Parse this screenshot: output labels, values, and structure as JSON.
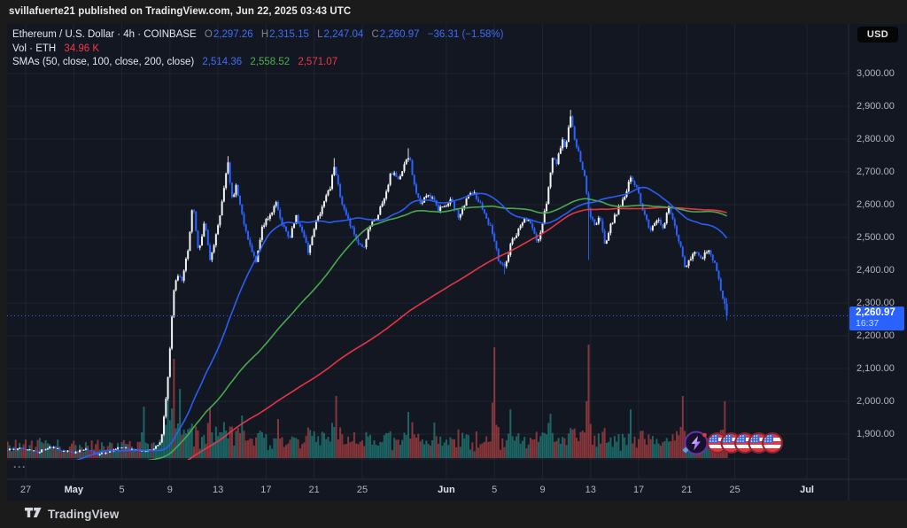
{
  "page": {
    "publish_line": "svillafuerte21 published on TradingView.com, Jun 22, 2025 03:43 UTC",
    "brand": "TradingView"
  },
  "chart": {
    "currency_button": "USD",
    "pane_more": "···",
    "legend": {
      "title": "Ethereum / U.S. Dollar · 4h · COINBASE",
      "o_label": "O",
      "o_value": "2,297.26",
      "h_label": "H",
      "h_value": "2,315.15",
      "l_label": "L",
      "l_value": "2,247.04",
      "c_label": "C",
      "c_value": "2,260.97",
      "change": "−36.31 (−1.58%)",
      "vol_label": "Vol · ETH",
      "vol_value": "34.96 K",
      "smas_label": "SMAs (50, close, 100, close, 200, close)",
      "sma50": "2,514.36",
      "sma100": "2,558.52",
      "sma200": "2,571.07"
    },
    "price_label": {
      "price": "2,260.97",
      "countdown": "16:37"
    }
  },
  "colors": {
    "up": "#f4f5f7",
    "down": "#2962ff",
    "sma50": "#2962ff",
    "sma100": "#4caf50",
    "sma200": "#f23645",
    "vol_up": "rgba(38,166,154,0.55)",
    "vol_down": "rgba(239,83,80,0.52)",
    "accent": "#2962ff",
    "bg_chart": "#131722",
    "bg_frame": "#1b1b1b",
    "grid": "rgba(255,255,255,0.055)",
    "axis_border": "#2a2e39",
    "axis_text": "#b2b5be"
  },
  "chart_data": {
    "type": "candlestick",
    "symbol_title": "Ethereum / U.S. Dollar",
    "interval": "4h",
    "exchange": "COINBASE",
    "ohlc_last": {
      "open": 2297.26,
      "high": 2315.15,
      "low": 2247.04,
      "close": 2260.97,
      "change": -36.31,
      "change_pct": -1.58
    },
    "volume_last": "34.96 K",
    "sma_values": {
      "sma50": 2514.36,
      "sma100": 2558.52,
      "sma200": 2571.07
    },
    "last_price": 2260.97,
    "grid": true,
    "y_axis": {
      "ticks": [
        {
          "price": 3000,
          "label": "3,000.00"
        },
        {
          "price": 2900,
          "label": "2,900.00"
        },
        {
          "price": 2800,
          "label": "2,800.00"
        },
        {
          "price": 2700,
          "label": "2,700.00"
        },
        {
          "price": 2600,
          "label": "2,600.00"
        },
        {
          "price": 2500,
          "label": "2,500.00"
        },
        {
          "price": 2400,
          "label": "2,400.00"
        },
        {
          "price": 2300,
          "label": "2,300.00"
        },
        {
          "price": 2200,
          "label": "2,200.00"
        },
        {
          "price": 2100,
          "label": "2,100.00"
        },
        {
          "price": 2000,
          "label": "2,000.00"
        },
        {
          "price": 1900,
          "label": "1,900.00"
        }
      ]
    },
    "x_axis": {
      "ticks": [
        {
          "label": "27",
          "day": 0
        },
        {
          "label": "May",
          "day": 4,
          "bold": true
        },
        {
          "label": "5",
          "day": 8
        },
        {
          "label": "9",
          "day": 12
        },
        {
          "label": "13",
          "day": 16
        },
        {
          "label": "17",
          "day": 20
        },
        {
          "label": "21",
          "day": 24
        },
        {
          "label": "25",
          "day": 28
        },
        {
          "label": "Jun",
          "day": 35,
          "bold": true
        },
        {
          "label": "5",
          "day": 39
        },
        {
          "label": "9",
          "day": 43
        },
        {
          "label": "13",
          "day": 47
        },
        {
          "label": "17",
          "day": 51
        },
        {
          "label": "21",
          "day": 55
        },
        {
          "label": "25",
          "day": 59
        },
        {
          "label": "Jul",
          "day": 65,
          "bold": true
        }
      ]
    },
    "price_path_day_price": [
      [
        -1.5,
        1852
      ],
      [
        0,
        1856
      ],
      [
        1,
        1845
      ],
      [
        2,
        1862
      ],
      [
        3,
        1850
      ],
      [
        4,
        1843
      ],
      [
        5,
        1856
      ],
      [
        6,
        1838
      ],
      [
        7,
        1848
      ],
      [
        8,
        1860
      ],
      [
        9,
        1852
      ],
      [
        10,
        1846
      ],
      [
        10.8,
        1858
      ],
      [
        11.3,
        1885
      ],
      [
        11.9,
        2100
      ],
      [
        12.3,
        2330
      ],
      [
        12.6,
        2390
      ],
      [
        13.0,
        2360
      ],
      [
        13.6,
        2480
      ],
      [
        13.9,
        2610
      ],
      [
        14.4,
        2455
      ],
      [
        14.9,
        2550
      ],
      [
        15.3,
        2430
      ],
      [
        15.8,
        2500
      ],
      [
        16.3,
        2600
      ],
      [
        16.8,
        2732
      ],
      [
        17.2,
        2605
      ],
      [
        17.5,
        2660
      ],
      [
        18.1,
        2550
      ],
      [
        18.6,
        2480
      ],
      [
        19.2,
        2428
      ],
      [
        19.7,
        2540
      ],
      [
        20.3,
        2562
      ],
      [
        20.8,
        2618
      ],
      [
        21.3,
        2540
      ],
      [
        22.0,
        2502
      ],
      [
        22.5,
        2560
      ],
      [
        23.0,
        2516
      ],
      [
        23.5,
        2456
      ],
      [
        24.1,
        2540
      ],
      [
        24.8,
        2608
      ],
      [
        25.3,
        2650
      ],
      [
        25.7,
        2722
      ],
      [
        26.3,
        2602
      ],
      [
        26.9,
        2542
      ],
      [
        27.5,
        2502
      ],
      [
        28.1,
        2456
      ],
      [
        28.6,
        2540
      ],
      [
        29.2,
        2562
      ],
      [
        29.8,
        2620
      ],
      [
        30.4,
        2698
      ],
      [
        31.0,
        2680
      ],
      [
        31.5,
        2718
      ],
      [
        31.9,
        2752
      ],
      [
        32.4,
        2642
      ],
      [
        32.9,
        2590
      ],
      [
        33.4,
        2638
      ],
      [
        33.9,
        2618
      ],
      [
        34.4,
        2582
      ],
      [
        34.9,
        2600
      ],
      [
        35.4,
        2618
      ],
      [
        36.0,
        2562
      ],
      [
        36.5,
        2600
      ],
      [
        37.1,
        2645
      ],
      [
        37.7,
        2610
      ],
      [
        38.3,
        2560
      ],
      [
        38.9,
        2508
      ],
      [
        39.4,
        2422
      ],
      [
        39.9,
        2406
      ],
      [
        40.5,
        2498
      ],
      [
        41.0,
        2520
      ],
      [
        41.6,
        2558
      ],
      [
        42.2,
        2530
      ],
      [
        42.6,
        2482
      ],
      [
        43.0,
        2540
      ],
      [
        43.4,
        2618
      ],
      [
        43.8,
        2748
      ],
      [
        44.2,
        2722
      ],
      [
        44.6,
        2798
      ],
      [
        44.9,
        2772
      ],
      [
        45.3,
        2868
      ],
      [
        45.7,
        2798
      ],
      [
        46.1,
        2740
      ],
      [
        46.5,
        2688
      ],
      [
        46.9,
        2560
      ],
      [
        47.3,
        2542
      ],
      [
        47.8,
        2562
      ],
      [
        48.2,
        2482
      ],
      [
        48.7,
        2540
      ],
      [
        49.2,
        2578
      ],
      [
        49.7,
        2618
      ],
      [
        50.4,
        2688
      ],
      [
        50.9,
        2640
      ],
      [
        51.5,
        2562
      ],
      [
        52.0,
        2520
      ],
      [
        52.5,
        2556
      ],
      [
        53.0,
        2530
      ],
      [
        53.5,
        2588
      ],
      [
        54.0,
        2542
      ],
      [
        54.4,
        2480
      ],
      [
        54.8,
        2412
      ],
      [
        55.3,
        2432
      ],
      [
        55.8,
        2456
      ],
      [
        56.3,
        2440
      ],
      [
        56.8,
        2460
      ],
      [
        57.2,
        2432
      ],
      [
        57.6,
        2380
      ],
      [
        58.0,
        2312
      ],
      [
        58.42,
        2260.97
      ]
    ],
    "wick_overrides": [
      [
        16.8,
        "high",
        2748
      ],
      [
        25.7,
        "high",
        2742
      ],
      [
        31.9,
        "high",
        2772
      ],
      [
        45.3,
        "high",
        2889
      ],
      [
        39.9,
        "low",
        2388
      ],
      [
        46.9,
        "low",
        2431
      ],
      [
        58.25,
        "low",
        2217
      ]
    ],
    "volume_spikes": [
      [
        9.8,
        58,
        "up"
      ],
      [
        11.9,
        72,
        "up"
      ],
      [
        12.3,
        112,
        "down"
      ],
      [
        12.8,
        78,
        "up"
      ],
      [
        15.4,
        56,
        "down"
      ],
      [
        18.0,
        48,
        "up"
      ],
      [
        21.0,
        44,
        "down"
      ],
      [
        25.8,
        70,
        "down"
      ],
      [
        31.9,
        52,
        "up"
      ],
      [
        34.0,
        40,
        "up"
      ],
      [
        39.0,
        125,
        "down"
      ],
      [
        40.3,
        55,
        "up"
      ],
      [
        43.6,
        50,
        "up"
      ],
      [
        46.9,
        128,
        "down"
      ],
      [
        50.3,
        55,
        "up"
      ],
      [
        54.6,
        70,
        "down"
      ],
      [
        58.2,
        64,
        "down"
      ]
    ],
    "stickers": {
      "lightning_count": 1,
      "us_flag_count": 5
    }
  }
}
